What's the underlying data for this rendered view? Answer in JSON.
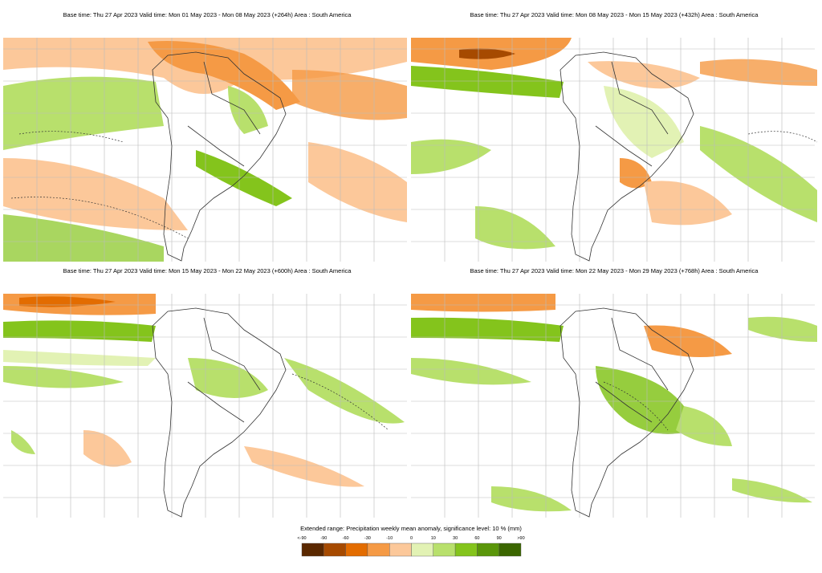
{
  "panels": [
    {
      "title": "Base time: Thu 27 Apr 2023 Valid time: Mon 01 May 2023 - Mon 08 May 2023 (+264h) Area : South America"
    },
    {
      "title": "Base time: Thu 27 Apr 2023 Valid time: Mon 08 May 2023 - Mon 15 May 2023 (+432h) Area : South America"
    },
    {
      "title": "Base time: Thu 27 Apr 2023 Valid time: Mon 15 May 2023 - Mon 22 May 2023 (+600h) Area : South America"
    },
    {
      "title": "Base time: Thu 27 Apr 2023 Valid time: Mon 22 May 2023 - Mon 29 May 2023 (+768h) Area : South America"
    }
  ],
  "legend": {
    "title": "Extended range: Precipitation weekly mean anomaly, significance level: 10 % (mm)",
    "labels": [
      "<-90",
      "-90",
      "-60",
      "-30",
      "-10",
      "0",
      "10",
      "30",
      "60",
      "90",
      ">90"
    ],
    "colors": [
      "#5a2800",
      "#a64a00",
      "#e36c00",
      "#f59a45",
      "#fcc89a",
      "#e2f2b4",
      "#b8e06c",
      "#84c41c",
      "#5a960a",
      "#3b6600"
    ]
  }
}
